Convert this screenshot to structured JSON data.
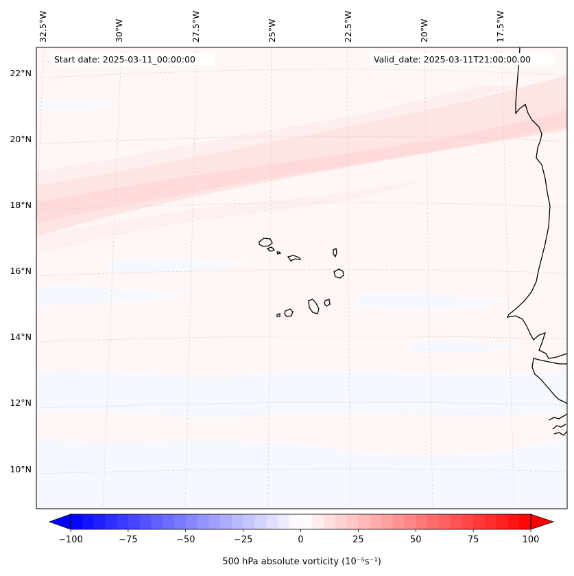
{
  "annotations": {
    "start_date": "Start date: 2025-03-11_00:00:00",
    "valid_date": "Valid_date: 2025-03-11T21:00:00.00"
  },
  "longitude_labels": [
    "32.5°W",
    "30°W",
    "27.5°W",
    "25°W",
    "22.5°W",
    "20°W",
    "17.5°W"
  ],
  "latitude_labels": [
    "22°N",
    "20°N",
    "18°N",
    "16°N",
    "14°N",
    "12°N",
    "10°N"
  ],
  "colorbar": {
    "ticks": [
      "−100",
      "−75",
      "−50",
      "−25",
      "0",
      "25",
      "50",
      "75",
      "100"
    ],
    "label": "500 hPa absolute vorticity (10⁻⁵s⁻¹)",
    "min": -100,
    "max": 100,
    "levels": 41,
    "colormap": "bwr",
    "extend": "both"
  },
  "colors": {
    "negative": "#0000ff",
    "zero": "#ffffff",
    "positive": "#ff0000",
    "coastline": "#000000",
    "gridline": "#c8c8c8"
  }
}
